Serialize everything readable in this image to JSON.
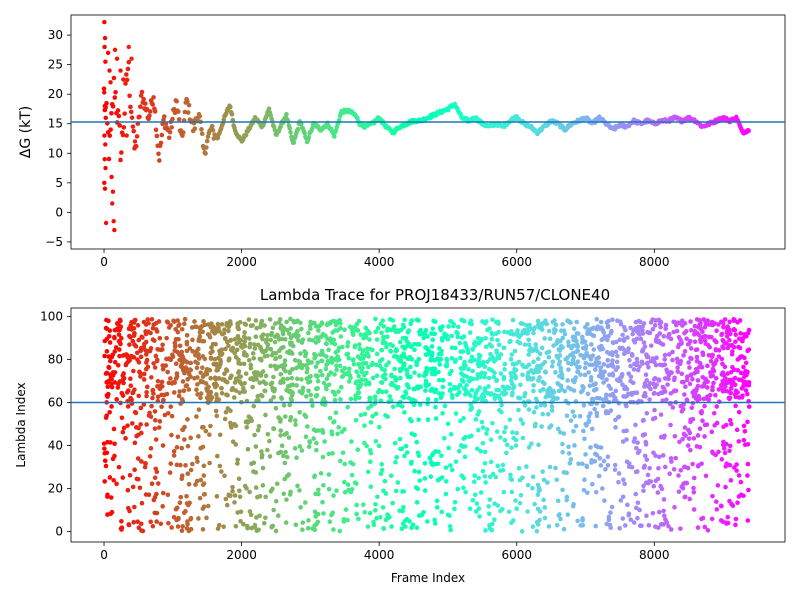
{
  "chart_data": [
    {
      "type": "scatter",
      "title": "",
      "xlabel": "",
      "ylabel": "ΔG (kT)",
      "xlim": [
        -480,
        9900
      ],
      "ylim": [
        -6.2,
        33.4
      ],
      "xticks": [
        0,
        2000,
        4000,
        6000,
        8000
      ],
      "xtick_labels": [
        "0",
        "2000",
        "4000",
        "6000",
        "8000"
      ],
      "yticks": [
        -5,
        0,
        5,
        10,
        15,
        20,
        25,
        30
      ],
      "ytick_labels": [
        "−5",
        "0",
        "5",
        "10",
        "15",
        "20",
        "25",
        "30"
      ],
      "hline": 15.3,
      "hline_color": "#1f77b4",
      "colormap": "rainbow",
      "color_by": "frame index (red at start → violet at end)",
      "x_max": 9380,
      "early_scatter_points": [
        {
          "x": 5,
          "y": 32.2
        },
        {
          "x": 15,
          "y": 29.5
        },
        {
          "x": 8,
          "y": 28.0
        },
        {
          "x": 20,
          "y": 25.5
        },
        {
          "x": 3,
          "y": 20.3
        },
        {
          "x": 12,
          "y": 18.0
        },
        {
          "x": 25,
          "y": 16.0
        },
        {
          "x": 6,
          "y": 13.0
        },
        {
          "x": 18,
          "y": 11.5
        },
        {
          "x": 10,
          "y": 9.0
        },
        {
          "x": 22,
          "y": 7.5
        },
        {
          "x": 4,
          "y": 5.0
        },
        {
          "x": 14,
          "y": 4.0
        },
        {
          "x": 30,
          "y": -1.8
        },
        {
          "x": 60,
          "y": 27.0
        },
        {
          "x": 80,
          "y": 24.0
        },
        {
          "x": 95,
          "y": 22.0
        },
        {
          "x": 110,
          "y": 6.0
        },
        {
          "x": 130,
          "y": 3.5
        },
        {
          "x": 120,
          "y": 1.5
        },
        {
          "x": 140,
          "y": -1.5
        },
        {
          "x": 150,
          "y": -3.0
        },
        {
          "x": 160,
          "y": 27.5
        },
        {
          "x": 190,
          "y": 26.0
        },
        {
          "x": 240,
          "y": 24.0
        },
        {
          "x": 280,
          "y": 22.5
        },
        {
          "x": 330,
          "y": 13.0
        },
        {
          "x": 360,
          "y": 28.0
        },
        {
          "x": 400,
          "y": 26.0
        },
        {
          "x": 450,
          "y": 12.0
        }
      ],
      "trace_points": [
        {
          "x": 0,
          "y": 20
        },
        {
          "x": 80,
          "y": 10
        },
        {
          "x": 150,
          "y": 22
        },
        {
          "x": 250,
          "y": 10
        },
        {
          "x": 350,
          "y": 25
        },
        {
          "x": 450,
          "y": 10
        },
        {
          "x": 550,
          "y": 20
        },
        {
          "x": 650,
          "y": 16
        },
        {
          "x": 720,
          "y": 20
        },
        {
          "x": 800,
          "y": 9
        },
        {
          "x": 870,
          "y": 16
        },
        {
          "x": 950,
          "y": 13
        },
        {
          "x": 1050,
          "y": 19
        },
        {
          "x": 1130,
          "y": 12
        },
        {
          "x": 1200,
          "y": 19
        },
        {
          "x": 1300,
          "y": 14
        },
        {
          "x": 1380,
          "y": 17
        },
        {
          "x": 1450,
          "y": 10
        },
        {
          "x": 1550,
          "y": 14
        },
        {
          "x": 1650,
          "y": 12.5
        },
        {
          "x": 1750,
          "y": 16
        },
        {
          "x": 1830,
          "y": 18.2
        },
        {
          "x": 1900,
          "y": 14
        },
        {
          "x": 2000,
          "y": 12
        },
        {
          "x": 2100,
          "y": 14
        },
        {
          "x": 2200,
          "y": 16
        },
        {
          "x": 2300,
          "y": 14.5
        },
        {
          "x": 2400,
          "y": 17.5
        },
        {
          "x": 2500,
          "y": 13
        },
        {
          "x": 2650,
          "y": 16.5
        },
        {
          "x": 2750,
          "y": 11.5
        },
        {
          "x": 2850,
          "y": 15.5
        },
        {
          "x": 2950,
          "y": 12
        },
        {
          "x": 3050,
          "y": 15
        },
        {
          "x": 3150,
          "y": 14
        },
        {
          "x": 3250,
          "y": 15
        },
        {
          "x": 3350,
          "y": 13
        },
        {
          "x": 3450,
          "y": 17
        },
        {
          "x": 3550,
          "y": 17.2
        },
        {
          "x": 3650,
          "y": 16.5
        },
        {
          "x": 3720,
          "y": 15
        },
        {
          "x": 3800,
          "y": 14.5
        },
        {
          "x": 3900,
          "y": 15
        },
        {
          "x": 4000,
          "y": 16
        },
        {
          "x": 4100,
          "y": 14.5
        },
        {
          "x": 4200,
          "y": 13.5
        },
        {
          "x": 4300,
          "y": 14.5
        },
        {
          "x": 4400,
          "y": 15
        },
        {
          "x": 4500,
          "y": 15.5
        },
        {
          "x": 4600,
          "y": 15.5
        },
        {
          "x": 4700,
          "y": 16
        },
        {
          "x": 4800,
          "y": 16.5
        },
        {
          "x": 4900,
          "y": 17
        },
        {
          "x": 5000,
          "y": 17.5
        },
        {
          "x": 5100,
          "y": 18.3
        },
        {
          "x": 5200,
          "y": 16
        },
        {
          "x": 5300,
          "y": 15.5
        },
        {
          "x": 5400,
          "y": 16
        },
        {
          "x": 5500,
          "y": 15
        },
        {
          "x": 5600,
          "y": 14.5
        },
        {
          "x": 5700,
          "y": 15
        },
        {
          "x": 5800,
          "y": 14.5
        },
        {
          "x": 5900,
          "y": 15.5
        },
        {
          "x": 6000,
          "y": 16.2
        },
        {
          "x": 6100,
          "y": 15
        },
        {
          "x": 6200,
          "y": 14.5
        },
        {
          "x": 6300,
          "y": 13.5
        },
        {
          "x": 6400,
          "y": 14.5
        },
        {
          "x": 6500,
          "y": 15.5
        },
        {
          "x": 6600,
          "y": 15
        },
        {
          "x": 6700,
          "y": 14
        },
        {
          "x": 6800,
          "y": 15
        },
        {
          "x": 6900,
          "y": 15.5
        },
        {
          "x": 7000,
          "y": 16
        },
        {
          "x": 7100,
          "y": 15
        },
        {
          "x": 7200,
          "y": 16
        },
        {
          "x": 7300,
          "y": 15
        },
        {
          "x": 7400,
          "y": 14
        },
        {
          "x": 7500,
          "y": 14.8
        },
        {
          "x": 7600,
          "y": 14.5
        },
        {
          "x": 7700,
          "y": 15.5
        },
        {
          "x": 7800,
          "y": 15
        },
        {
          "x": 7900,
          "y": 15.5
        },
        {
          "x": 8000,
          "y": 15
        },
        {
          "x": 8100,
          "y": 15.5
        },
        {
          "x": 8200,
          "y": 15.5
        },
        {
          "x": 8300,
          "y": 16
        },
        {
          "x": 8400,
          "y": 15.5
        },
        {
          "x": 8500,
          "y": 16
        },
        {
          "x": 8600,
          "y": 15.5
        },
        {
          "x": 8700,
          "y": 14.5
        },
        {
          "x": 8800,
          "y": 15
        },
        {
          "x": 8900,
          "y": 15.5
        },
        {
          "x": 9000,
          "y": 16
        },
        {
          "x": 9100,
          "y": 15.5
        },
        {
          "x": 9200,
          "y": 16
        },
        {
          "x": 9280,
          "y": 13.5
        },
        {
          "x": 9380,
          "y": 14
        }
      ]
    },
    {
      "type": "scatter",
      "title": "Lambda Trace for PROJ18433/RUN57/CLONE40",
      "xlabel": "Frame Index",
      "ylabel": "Lambda Index",
      "xlim": [
        -480,
        9900
      ],
      "ylim": [
        -4.95,
        103.95
      ],
      "xticks": [
        0,
        2000,
        4000,
        6000,
        8000
      ],
      "xtick_labels": [
        "0",
        "2000",
        "4000",
        "6000",
        "8000"
      ],
      "yticks": [
        0,
        20,
        40,
        60,
        80,
        100
      ],
      "ytick_labels": [
        "0",
        "20",
        "40",
        "60",
        "80",
        "100"
      ],
      "hline": 60,
      "hline_color": "#1f77b4",
      "colormap": "rainbow",
      "color_by": "frame index (red at start → violet at end)",
      "x_range": [
        0,
        9380
      ],
      "y_range": [
        0,
        99
      ],
      "dense_upper_band": [
        60,
        99
      ],
      "point_count_approx": 9400
    }
  ]
}
